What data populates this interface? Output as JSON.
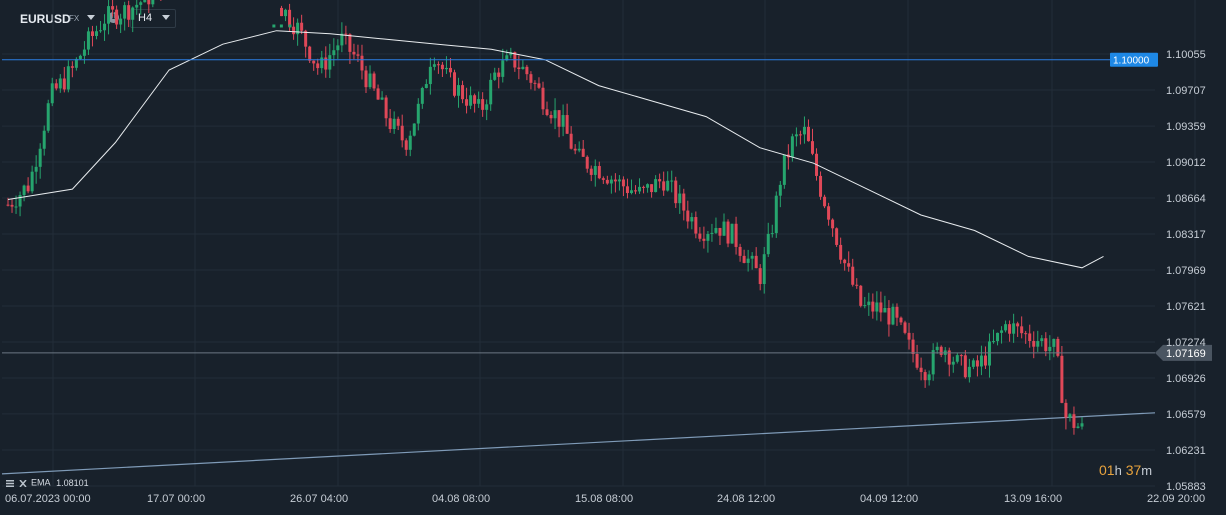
{
  "toolbar": {
    "symbol": "EURUSD",
    "symbol_type": "FX",
    "info_icon": "info-icon",
    "timeframe": "H4",
    "caret_icon": "caret-down-icon"
  },
  "colors": {
    "background": "#18212b",
    "grid": "#222d38",
    "up": "#26a56e",
    "down": "#e04858",
    "ema": "#e8ecef",
    "resistance": "#2a7de1",
    "trendline": "#7f9bb8",
    "last_price": "#6b7783"
  },
  "ema_legend": {
    "label": "EMA",
    "value": "1.08101"
  },
  "countdown": {
    "hours": "01",
    "h_unit": "h",
    "minutes": "37",
    "m_unit": "m"
  },
  "chart_data": {
    "type": "candlestick",
    "symbol": "EURUSD",
    "timeframe": "H4",
    "y_ticks": [
      "1.10055",
      "1.09707",
      "1.09359",
      "1.09012",
      "1.08664",
      "1.08317",
      "1.07969",
      "1.07621",
      "1.07274",
      "1.06926",
      "1.06579",
      "1.06231",
      "1.05883"
    ],
    "ylim": [
      1.05883,
      1.10403
    ],
    "x_ticks": [
      "06.07.2023  00:00",
      "17.07  00:00",
      "26.07  04:00",
      "04.08  08:00",
      "15.08  08:00",
      "24.08  12:00",
      "04.09  12:00",
      "13.09  16:00",
      "22.09  20:00"
    ],
    "horizontal_line": {
      "value": 1.1,
      "label": "1.10000"
    },
    "last_price": {
      "value": 1.07169,
      "label": "1.07169"
    },
    "ema": {
      "name": "EMA",
      "last": 1.08101
    },
    "trendline": {
      "start": 1.06,
      "end": 1.0659
    },
    "close_path": [
      [
        0,
        1.086
      ],
      [
        0.02,
        1.088
      ],
      [
        0.04,
        1.0965
      ],
      [
        0.06,
        1.099
      ],
      [
        0.07,
        1.101
      ],
      [
        0.09,
        1.104
      ],
      [
        0.11,
        1.1048
      ],
      [
        0.13,
        1.106
      ],
      [
        0.15,
        1.108
      ],
      [
        0.255,
        1.105
      ],
      [
        0.27,
        1.103
      ],
      [
        0.29,
        1.099
      ],
      [
        0.31,
        1.102
      ],
      [
        0.325,
        1.1
      ],
      [
        0.34,
        1.097
      ],
      [
        0.355,
        1.094
      ],
      [
        0.37,
        1.092
      ],
      [
        0.385,
        1.096
      ],
      [
        0.395,
        1.101
      ],
      [
        0.41,
        1.098
      ],
      [
        0.425,
        1.0965
      ],
      [
        0.44,
        1.095
      ],
      [
        0.455,
        1.099
      ],
      [
        0.47,
        1.1
      ],
      [
        0.485,
        1.0985
      ],
      [
        0.5,
        1.096
      ],
      [
        0.515,
        1.094
      ],
      [
        0.53,
        1.0905
      ],
      [
        0.55,
        1.0895
      ],
      [
        0.57,
        1.088
      ],
      [
        0.59,
        1.087
      ],
      [
        0.61,
        1.0885
      ],
      [
        0.63,
        1.0855
      ],
      [
        0.645,
        1.0835
      ],
      [
        0.66,
        1.084
      ],
      [
        0.675,
        1.083
      ],
      [
        0.69,
        1.0805
      ],
      [
        0.7,
        1.079
      ],
      [
        0.71,
        1.083
      ],
      [
        0.72,
        1.089
      ],
      [
        0.73,
        1.092
      ],
      [
        0.742,
        1.093
      ],
      [
        0.755,
        1.088
      ],
      [
        0.765,
        1.085
      ],
      [
        0.78,
        1.08
      ],
      [
        0.795,
        1.076
      ],
      [
        0.81,
        1.076
      ],
      [
        0.825,
        1.075
      ],
      [
        0.84,
        1.072
      ],
      [
        0.855,
        1.07
      ],
      [
        0.87,
        1.0725
      ],
      [
        0.885,
        1.0705
      ],
      [
        0.9,
        1.07
      ],
      [
        0.915,
        1.072
      ],
      [
        0.93,
        1.0745
      ],
      [
        0.945,
        1.0735
      ],
      [
        0.96,
        1.073
      ],
      [
        0.975,
        1.072
      ],
      [
        0.985,
        1.0655
      ],
      [
        1.0,
        1.0643
      ],
      [
        1.015,
        1.066
      ],
      [
        1.03,
        1.0675
      ],
      [
        1.045,
        1.068
      ],
      [
        1.06,
        1.069
      ],
      [
        1.072,
        1.0717
      ]
    ],
    "ema_path": [
      [
        0,
        1.0865
      ],
      [
        0.06,
        1.0875
      ],
      [
        0.1,
        1.092
      ],
      [
        0.15,
        1.099
      ],
      [
        0.2,
        1.1015
      ],
      [
        0.25,
        1.1028
      ],
      [
        0.3,
        1.1025
      ],
      [
        0.35,
        1.102
      ],
      [
        0.4,
        1.1015
      ],
      [
        0.45,
        1.101
      ],
      [
        0.5,
        1.1
      ],
      [
        0.55,
        1.0975
      ],
      [
        0.6,
        1.096
      ],
      [
        0.65,
        1.0945
      ],
      [
        0.7,
        1.0915
      ],
      [
        0.75,
        1.09
      ],
      [
        0.8,
        1.0875
      ],
      [
        0.85,
        1.085
      ],
      [
        0.9,
        1.0835
      ],
      [
        0.95,
        1.081
      ],
      [
        1.0,
        1.0799
      ],
      [
        1.02,
        1.081
      ]
    ]
  }
}
